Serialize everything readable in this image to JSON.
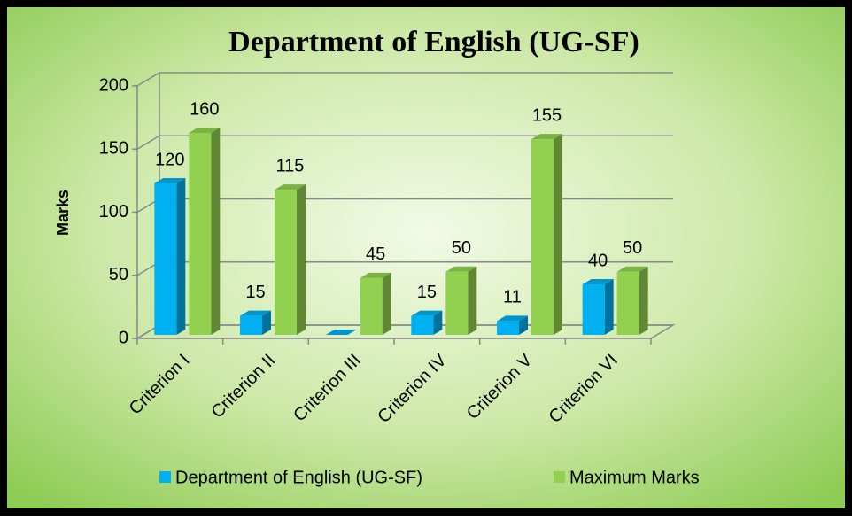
{
  "chart_data": {
    "type": "bar3d",
    "title": "Department of English (UG-SF)",
    "y_label": "Marks",
    "categories": [
      "Criterion I",
      "Criterion II",
      "Criterion III",
      "Criterion IV",
      "Criterion V",
      "Criterion VI"
    ],
    "series": [
      {
        "name": "Department of English (UG-SF)",
        "color": "#00b0f0",
        "values": [
          120,
          15,
          0,
          15,
          11,
          40
        ],
        "value_labels": [
          "120",
          "15",
          null,
          "15",
          "11",
          "40"
        ]
      },
      {
        "name": "Maximum Marks",
        "color": "#92d050",
        "values": [
          160,
          115,
          45,
          50,
          155,
          50
        ]
      }
    ],
    "ylim": [
      0,
      200
    ],
    "yticks": [
      0,
      50,
      100,
      150,
      200
    ],
    "grid": true,
    "legend": "bottom"
  }
}
